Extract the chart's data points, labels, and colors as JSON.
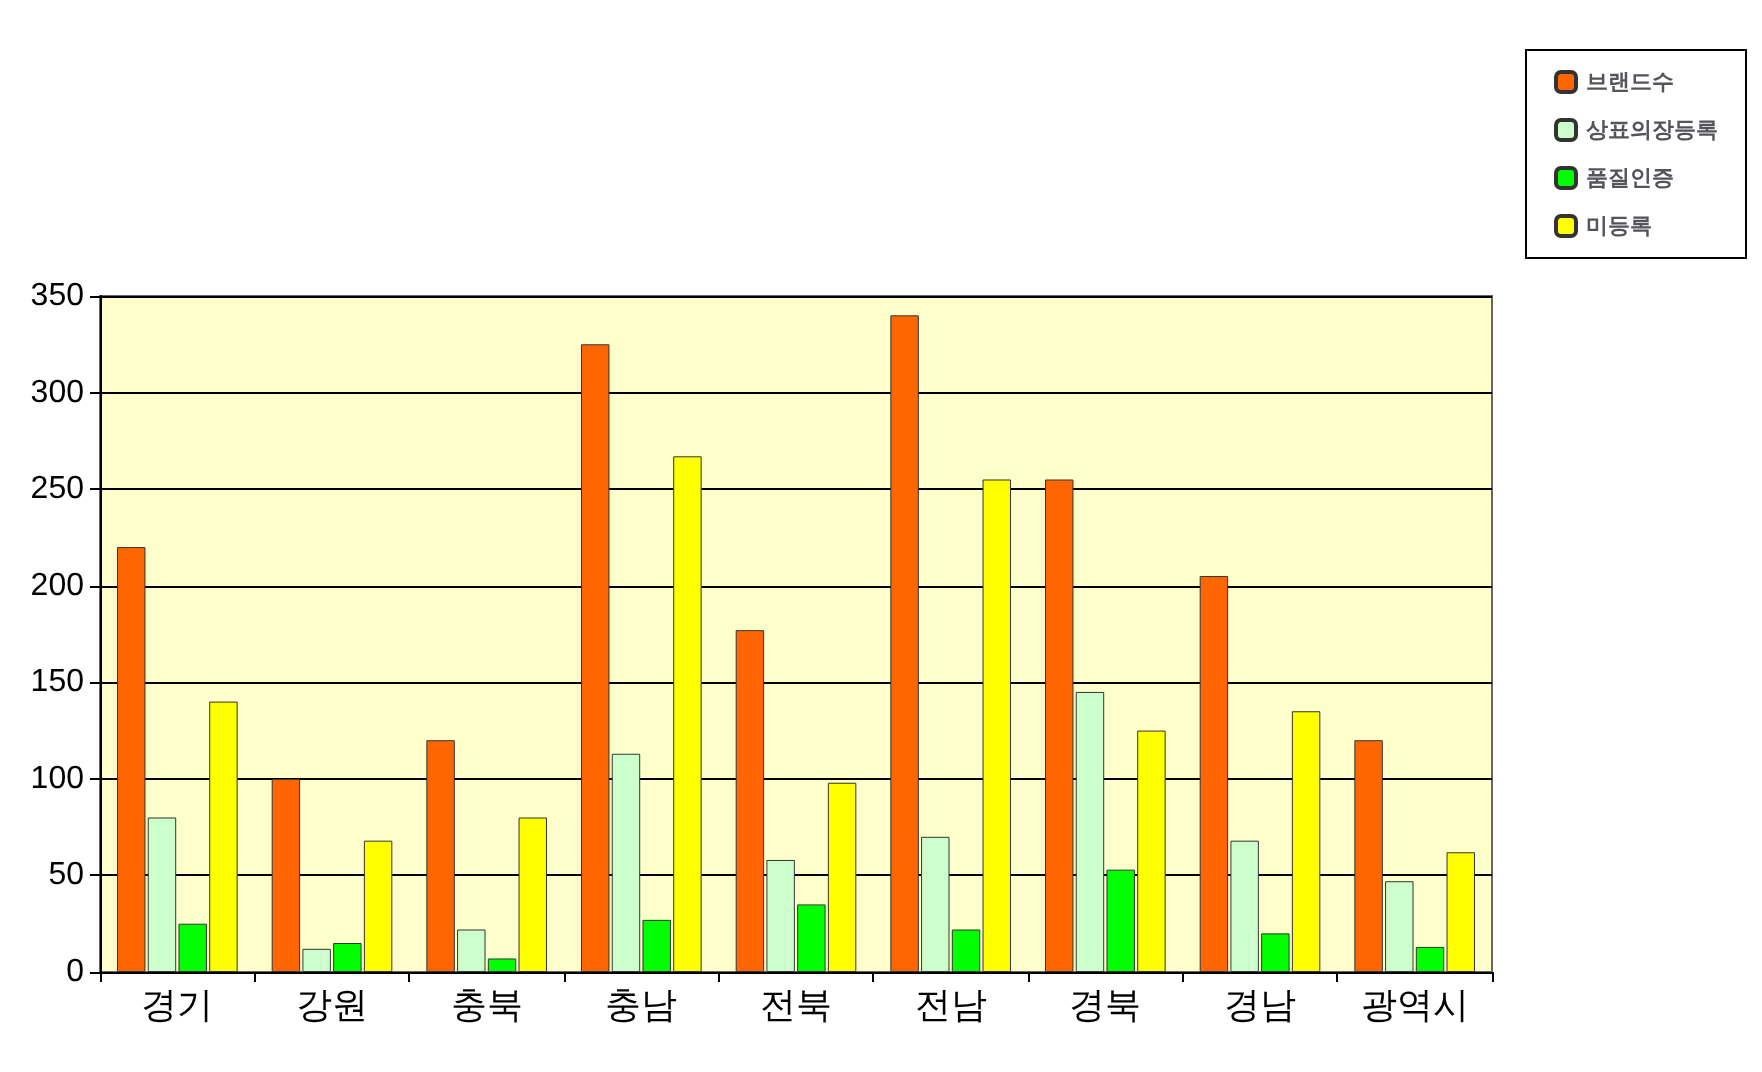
{
  "chart_data": {
    "type": "bar",
    "categories": [
      "경기",
      "강원",
      "충북",
      "충남",
      "전북",
      "전남",
      "경북",
      "경남",
      "광역시"
    ],
    "series": [
      {
        "name": "브랜드수",
        "color": "#ff6600",
        "values": [
          220,
          100,
          120,
          325,
          177,
          340,
          255,
          205,
          120
        ]
      },
      {
        "name": "상표의장등록",
        "color": "#ccffcc",
        "values": [
          80,
          12,
          22,
          113,
          58,
          70,
          145,
          68,
          47
        ]
      },
      {
        "name": "품질인증",
        "color": "#00ff00",
        "values": [
          25,
          15,
          7,
          27,
          35,
          22,
          53,
          20,
          13
        ]
      },
      {
        "name": "미등록",
        "color": "#ffff00",
        "values": [
          140,
          68,
          80,
          267,
          98,
          255,
          125,
          135,
          62
        ]
      }
    ],
    "ylim": [
      0,
      350
    ],
    "yticks": [
      0,
      50,
      100,
      150,
      200,
      250,
      300,
      350
    ],
    "grid": "y",
    "legend": "top right"
  }
}
